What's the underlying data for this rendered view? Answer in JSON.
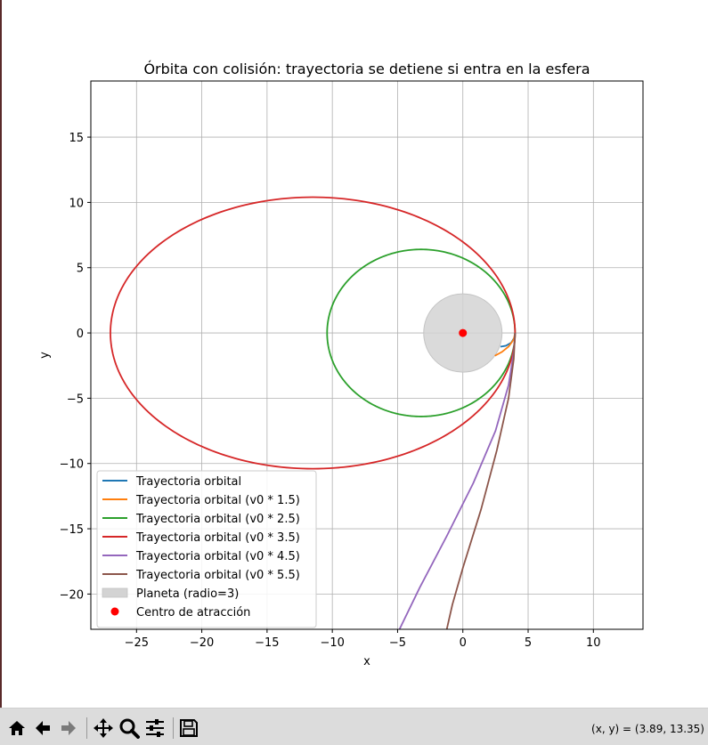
{
  "chart_data": {
    "type": "line",
    "title": "Órbita con colisión: trayectoria se detiene si entra en la esfera",
    "xlabel": "x",
    "ylabel": "y",
    "xlim": [
      -28.5,
      13.8
    ],
    "ylim": [
      -22.7,
      19.3
    ],
    "xticks": [
      -25,
      -20,
      -15,
      -10,
      -5,
      0,
      5,
      10
    ],
    "yticks": [
      -20,
      -15,
      -10,
      -5,
      0,
      5,
      10,
      15
    ],
    "xtick_labels": [
      "−25",
      "−20",
      "−15",
      "−10",
      "−5",
      "0",
      "5",
      "10"
    ],
    "ytick_labels": [
      "−20",
      "−15",
      "−10",
      "−5",
      "0",
      "5",
      "10",
      "15"
    ],
    "grid": true,
    "legend_position": "lower-left",
    "series": [
      {
        "name": "Trayectoria orbital",
        "color": "#1f77b4",
        "points": [
          [
            4.0,
            0.0
          ],
          [
            3.95,
            -0.35
          ],
          [
            3.7,
            -0.75
          ],
          [
            3.3,
            -0.98
          ],
          [
            2.88,
            -1.05
          ]
        ]
      },
      {
        "name": "Trayectoria orbital (v0 * 1.5)",
        "color": "#ff7f0e",
        "points": [
          [
            4.0,
            0.0
          ],
          [
            3.9,
            -0.5
          ],
          [
            3.5,
            -1.05
          ],
          [
            3.0,
            -1.45
          ],
          [
            2.45,
            -1.75
          ]
        ]
      },
      {
        "name": "Trayectoria orbital (v0 * 2.5)",
        "color": "#2ca02c",
        "orbit": {
          "cx": -3.2,
          "cy": 0.0,
          "rx": 7.2,
          "ry": 6.4
        }
      },
      {
        "name": "Trayectoria orbital (v0 * 3.5)",
        "color": "#d62728",
        "orbit": {
          "cx": -11.5,
          "cy": 0.0,
          "rx": 15.5,
          "ry": 10.4
        }
      },
      {
        "name": "Trayectoria orbital (v0 * 4.5)",
        "color": "#9467bd",
        "points": [
          [
            4.0,
            0.0
          ],
          [
            3.9,
            -1.5
          ],
          [
            3.5,
            -4.0
          ],
          [
            2.5,
            -7.5
          ],
          [
            0.8,
            -11.5
          ],
          [
            -1.2,
            -15.5
          ],
          [
            -3.3,
            -19.5
          ],
          [
            -5.0,
            -23.0
          ]
        ]
      },
      {
        "name": "Trayectoria orbital (v0 * 5.5)",
        "color": "#8c564b",
        "points": [
          [
            4.0,
            0.0
          ],
          [
            3.9,
            -2.0
          ],
          [
            3.5,
            -5.0
          ],
          [
            2.6,
            -9.0
          ],
          [
            1.4,
            -13.5
          ],
          [
            0.0,
            -18.0
          ],
          [
            -0.8,
            -20.8
          ],
          [
            -1.3,
            -23.0
          ]
        ]
      }
    ],
    "planet": {
      "label": "Planeta (radio=3)",
      "cx": 0,
      "cy": 0,
      "r": 3,
      "color": "#d3d3d3"
    },
    "center": {
      "label": "Centro de atracción",
      "x": 0,
      "y": 0,
      "color": "#ff0000"
    }
  },
  "toolbar": {
    "icons": [
      "home-icon",
      "back-icon",
      "forward-icon",
      "pan-icon",
      "zoom-icon",
      "configure-subplots-icon",
      "save-icon"
    ],
    "coords": "(x, y) = (3.89, 13.35)"
  }
}
